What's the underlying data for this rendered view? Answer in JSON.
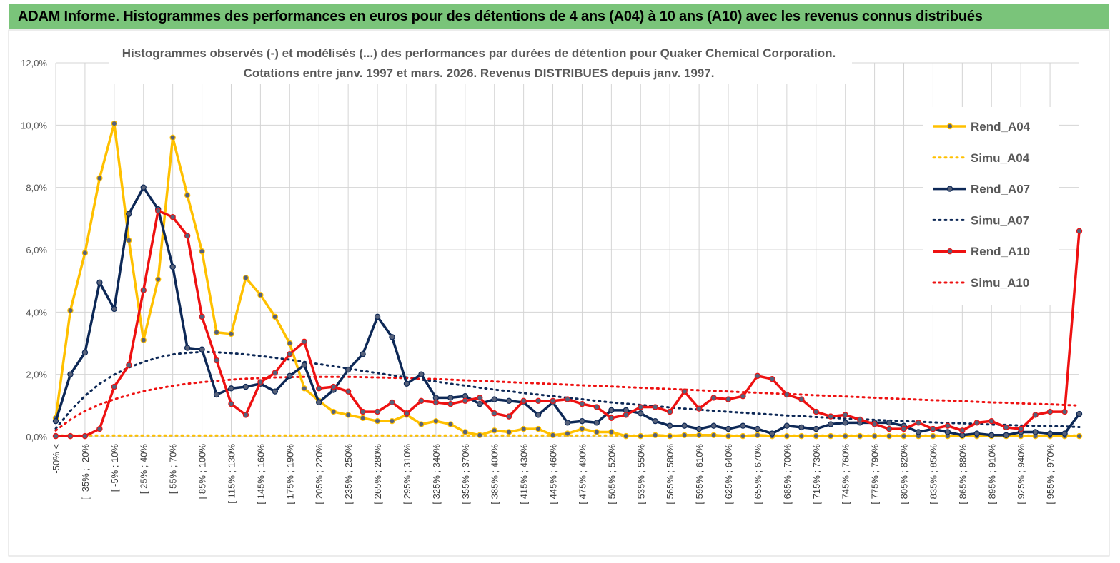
{
  "banner": {
    "title": "ADAM Informe. Histogrammes des performances en euros pour des détentions de 4 ans (A04) à 10 ans (A10) avec les revenus connus distribués"
  },
  "colors": {
    "rend_a04": "#ffc000",
    "simu_a04": "#ffc000",
    "rend_a07": "#0d2856",
    "simu_a07": "#0d2856",
    "rend_a10": "#ee1111",
    "simu_a10": "#ee1111",
    "banner": "#7ac47a",
    "grid": "#d4d4d4"
  },
  "chart_data": {
    "type": "line",
    "title": "Histogrammes observés (-)  et modélisés (...) des performances par durées de détention pour Quaker Chemical Corporation.",
    "subtitle": "Cotations entre janv. 1997 et mars. 2026.  Revenus DISTRIBUES depuis janv. 1997.",
    "xlabel": "",
    "ylabel": "",
    "ylim": [
      0,
      0.12
    ],
    "yticks": [
      "0,0%",
      "2,0%",
      "4,0%",
      "6,0%",
      "8,0%",
      "10,0%",
      "12,0%"
    ],
    "legend_position": "right",
    "x_tick_labels": [
      "-50% <",
      "[ -35% ; -20%",
      "[ -5% ; 10%",
      "[ 25% ; 40%",
      "[ 55% ; 70%",
      "[ 85% ; 100%",
      "[ 115% ; 130%",
      "[ 145% ; 160%",
      "[ 175% ; 190%",
      "[ 205% ; 220%",
      "[ 235% ; 250%",
      "[ 265% ; 280%",
      "[ 295% ; 310%",
      "[ 325% ; 340%",
      "[ 355% ; 370%",
      "[ 385% ; 400%",
      "[ 415% ; 430%",
      "[ 445% ; 460%",
      "[ 475% ; 490%",
      "[ 505% ; 520%",
      "[ 535% ; 550%",
      "[ 565% ; 580%",
      "[ 595% ; 610%",
      "[ 625% ; 640%",
      "[ 655% ; 670%",
      "[ 685% ; 700%",
      "[ 715% ; 730%",
      "[ 745% ; 760%",
      "[ 775% ; 790%",
      "[ 805% ; 820%",
      "[ 835% ; 850%",
      "[ 865% ; 880%",
      "[ 895% ; 910%",
      "[ 925% ; 940%",
      "[ 955% ; 970%"
    ],
    "series": [
      {
        "name": "Rend_A04",
        "style": "solid",
        "markers": true,
        "values": [
          0.006,
          0.0405,
          0.059,
          0.083,
          0.1005,
          0.063,
          0.031,
          0.0505,
          0.096,
          0.0775,
          0.0595,
          0.0335,
          0.033,
          0.051,
          0.0455,
          0.0385,
          0.03,
          0.0155,
          0.0115,
          0.008,
          0.007,
          0.006,
          0.005,
          0.005,
          0.007,
          0.004,
          0.005,
          0.004,
          0.0015,
          0.0005,
          0.002,
          0.0015,
          0.0025,
          0.0025,
          0.0005,
          0.001,
          0.0025,
          0.0015,
          0.0015,
          0.0002,
          0.0002,
          0.0005,
          0.0002,
          0.0005,
          0.0005,
          0.0005,
          0.0002,
          0.0002,
          0.0005,
          0.0002,
          0.0002,
          0.0002,
          0.0002,
          0.0002,
          0.0002,
          0.0002,
          0.0002,
          0.0002,
          0.0002,
          0.0002,
          0.0002,
          0.0002,
          0.0002,
          0.0002,
          0.0002,
          0.0002,
          0.0002,
          0.0002,
          0.0002,
          0.0002,
          0.0002
        ]
      },
      {
        "name": "Simu_A04",
        "style": "dotted",
        "markers": false,
        "values": [
          0.0004,
          0.0004,
          0.0004,
          0.0004,
          0.0004,
          0.0004,
          0.0004,
          0.0004,
          0.0004,
          0.0004,
          0.0004,
          0.0004,
          0.0004,
          0.0004,
          0.0004,
          0.0004,
          0.0004,
          0.0004,
          0.0004,
          0.0004,
          0.0004,
          0.0004,
          0.0004,
          0.0004,
          0.0004,
          0.0004,
          0.0004,
          0.0004,
          0.0004,
          0.0004,
          0.0004,
          0.0004,
          0.0004,
          0.0004,
          0.0004,
          0.0004,
          0.0004,
          0.0004,
          0.0004,
          0.0004,
          0.0004,
          0.0004,
          0.0004,
          0.0004,
          0.0004,
          0.0004,
          0.0004,
          0.0004,
          0.0004,
          0.0004,
          0.0004,
          0.0004,
          0.0004,
          0.0004,
          0.0004,
          0.0004,
          0.0004,
          0.0004,
          0.0004,
          0.0004,
          0.0004,
          0.0004,
          0.0004,
          0.0004,
          0.0004,
          0.0004,
          0.0004,
          0.0004,
          0.0004,
          0.0004,
          0.0004
        ]
      },
      {
        "name": "Rend_A07",
        "style": "solid",
        "markers": true,
        "values": [
          0.005,
          0.02,
          0.027,
          0.0495,
          0.041,
          0.0715,
          0.08,
          0.073,
          0.0545,
          0.0285,
          0.028,
          0.0135,
          0.0155,
          0.016,
          0.017,
          0.0145,
          0.0195,
          0.023,
          0.011,
          0.015,
          0.0215,
          0.0265,
          0.0385,
          0.032,
          0.017,
          0.02,
          0.0125,
          0.0125,
          0.013,
          0.0105,
          0.012,
          0.0115,
          0.011,
          0.007,
          0.011,
          0.0045,
          0.005,
          0.0045,
          0.0085,
          0.0085,
          0.0075,
          0.005,
          0.0035,
          0.0035,
          0.0025,
          0.0035,
          0.0025,
          0.0035,
          0.0025,
          0.001,
          0.0035,
          0.003,
          0.0025,
          0.004,
          0.0045,
          0.0045,
          0.0045,
          0.0045,
          0.0035,
          0.0015,
          0.0025,
          0.0015,
          0.0005,
          0.001,
          0.0005,
          0.0005,
          0.0015,
          0.0015,
          0.001,
          0.001,
          0.0073
        ]
      },
      {
        "name": "Simu_A07",
        "style": "dotted",
        "markers": false,
        "values": [
          0.0026,
          0.0083,
          0.0131,
          0.017,
          0.0199,
          0.0222,
          0.024,
          0.0254,
          0.0264,
          0.0269,
          0.0272,
          0.0271,
          0.0268,
          0.0264,
          0.0259,
          0.0253,
          0.0247,
          0.024,
          0.0233,
          0.0226,
          0.0219,
          0.0211,
          0.0204,
          0.0197,
          0.019,
          0.0183,
          0.0177,
          0.017,
          0.0164,
          0.0157,
          0.0151,
          0.0146,
          0.014,
          0.0135,
          0.013,
          0.0125,
          0.012,
          0.0115,
          0.011,
          0.0106,
          0.0102,
          0.0098,
          0.0094,
          0.009,
          0.0087,
          0.0083,
          0.008,
          0.0077,
          0.0074,
          0.0071,
          0.0068,
          0.0066,
          0.0063,
          0.0061,
          0.0058,
          0.0056,
          0.0054,
          0.0052,
          0.005,
          0.0048,
          0.0046,
          0.0044,
          0.0043,
          0.0041,
          0.0039,
          0.0038,
          0.0036,
          0.0035,
          0.0034,
          0.0033,
          0.0031
        ]
      },
      {
        "name": "Rend_A10",
        "style": "solid",
        "markers": true,
        "values": [
          0.0002,
          0.0002,
          0.0002,
          0.0025,
          0.016,
          0.023,
          0.047,
          0.0725,
          0.0705,
          0.0645,
          0.0385,
          0.0245,
          0.0105,
          0.007,
          0.0175,
          0.0205,
          0.0265,
          0.0305,
          0.0155,
          0.016,
          0.0145,
          0.008,
          0.008,
          0.011,
          0.0075,
          0.0115,
          0.011,
          0.0105,
          0.0115,
          0.0125,
          0.0075,
          0.0065,
          0.0115,
          0.0115,
          0.0115,
          0.012,
          0.0105,
          0.0095,
          0.006,
          0.007,
          0.0095,
          0.0095,
          0.008,
          0.0145,
          0.009,
          0.0125,
          0.012,
          0.013,
          0.0195,
          0.0185,
          0.0135,
          0.012,
          0.008,
          0.0065,
          0.007,
          0.0055,
          0.004,
          0.0025,
          0.0025,
          0.0045,
          0.0025,
          0.0035,
          0.002,
          0.0045,
          0.005,
          0.003,
          0.0025,
          0.007,
          0.008,
          0.008,
          0.066
        ]
      },
      {
        "name": "Simu_A10",
        "style": "dotted",
        "markers": false,
        "values": [
          0.002,
          0.0055,
          0.0082,
          0.0103,
          0.012,
          0.0134,
          0.0146,
          0.0155,
          0.0163,
          0.017,
          0.0175,
          0.0179,
          0.0183,
          0.0186,
          0.0188,
          0.019,
          0.0191,
          0.0192,
          0.0192,
          0.0192,
          0.0192,
          0.0191,
          0.019,
          0.0189,
          0.0188,
          0.0186,
          0.0185,
          0.0183,
          0.0181,
          0.0179,
          0.0177,
          0.0175,
          0.0173,
          0.0171,
          0.0169,
          0.0167,
          0.0165,
          0.0163,
          0.0161,
          0.0159,
          0.0157,
          0.0155,
          0.0153,
          0.0151,
          0.0149,
          0.0147,
          0.0145,
          0.0143,
          0.0141,
          0.0139,
          0.0137,
          0.0135,
          0.0133,
          0.0131,
          0.0129,
          0.0127,
          0.0125,
          0.0123,
          0.0121,
          0.0119,
          0.0117,
          0.0116,
          0.0114,
          0.0112,
          0.011,
          0.0109,
          0.0107,
          0.0105,
          0.0104,
          0.0102,
          0.01
        ]
      }
    ]
  }
}
